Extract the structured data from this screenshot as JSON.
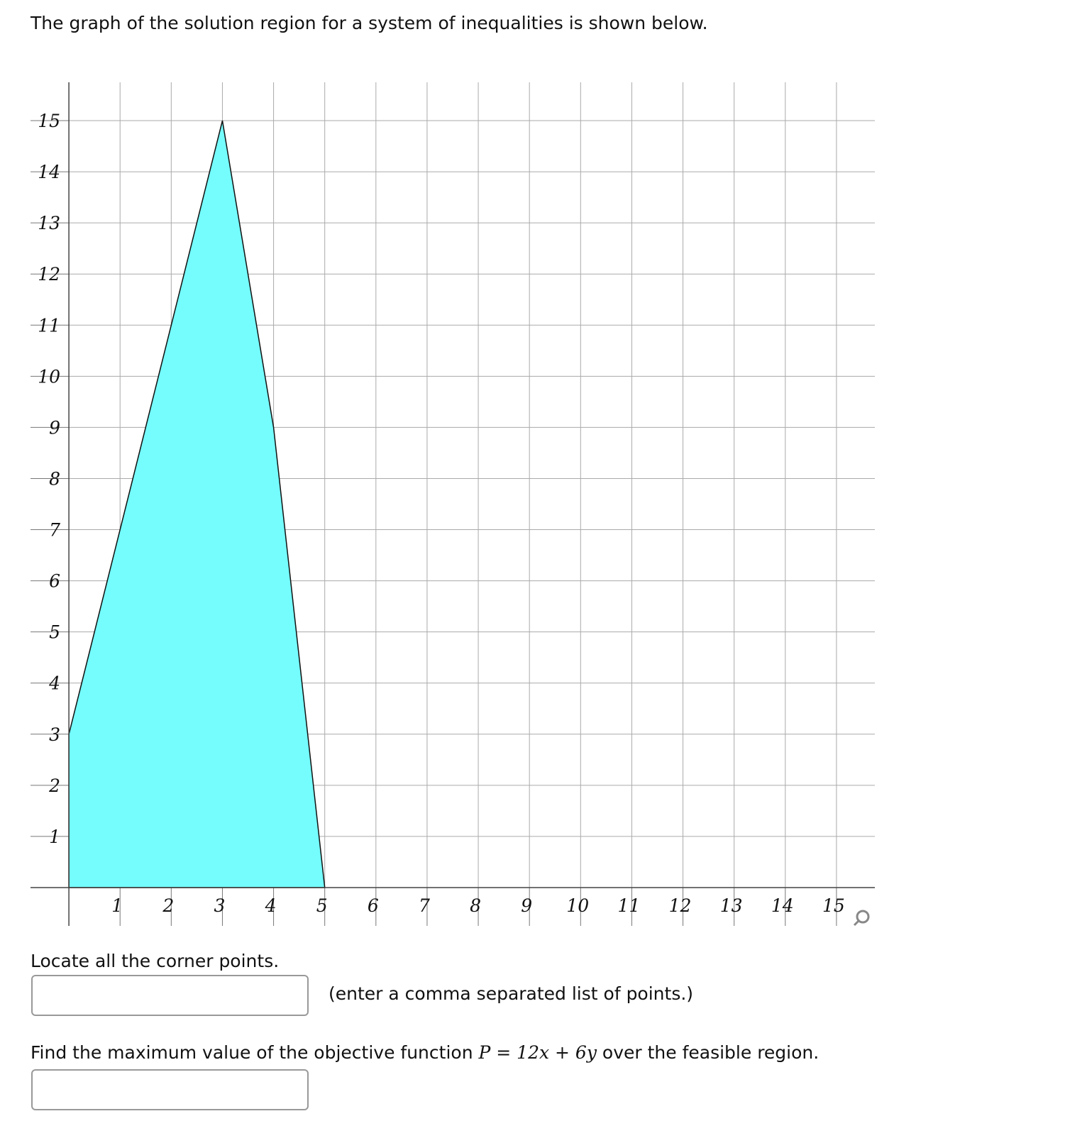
{
  "intro": "The graph of the solution region for a system of inequalities is shown below.",
  "chart_data": {
    "type": "polygon",
    "x": [
      0,
      0,
      3,
      4,
      5
    ],
    "y": [
      0,
      3,
      15,
      9,
      0
    ],
    "color": "#75fcfd",
    "xlim": [
      -0.75,
      15.75
    ],
    "ylim": [
      -0.75,
      15.75
    ],
    "xticks": [
      1,
      2,
      3,
      4,
      5,
      6,
      7,
      8,
      9,
      10,
      11,
      12,
      13,
      14,
      15
    ],
    "yticks": [
      1,
      2,
      3,
      4,
      5,
      6,
      7,
      8,
      9,
      10,
      11,
      12,
      13,
      14,
      15
    ],
    "grid": true
  },
  "question1": "Locate all the corner points.",
  "hint1": "(enter a comma separated list of points.)",
  "question2": {
    "before": "Find the maximum value of the objective function",
    "math": "P = 12x + 6y",
    "after": "over the feasible region."
  }
}
